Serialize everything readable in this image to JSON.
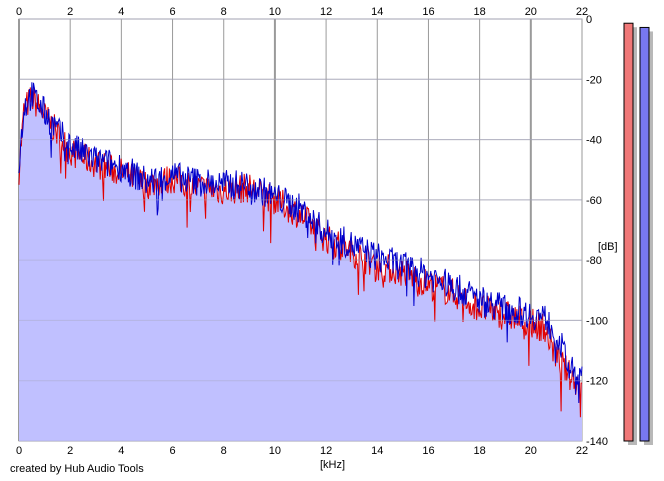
{
  "chart_data": {
    "type": "area",
    "xlabel": "[kHz]",
    "ylabel": "[dB]",
    "xlim": [
      0,
      22
    ],
    "ylim": [
      -140,
      0
    ],
    "x_ticks": [
      "0",
      "2",
      "4",
      "6",
      "8",
      "10",
      "12",
      "14",
      "16",
      "18",
      "20",
      "22"
    ],
    "y_ticks": [
      "0",
      "-20",
      "-40",
      "-60",
      "-80",
      "-100",
      "-120",
      "-140"
    ],
    "grid": true,
    "series": [
      {
        "color": "#e00000",
        "x": [
          0,
          0.2,
          0.5,
          1,
          1.5,
          2,
          3,
          4,
          5,
          6,
          7,
          8,
          9,
          10,
          11,
          12,
          13,
          14,
          15,
          16,
          17,
          18,
          19,
          20,
          20.5,
          21,
          21.5,
          22
        ],
        "values": [
          -50,
          -30,
          -26,
          -32,
          -38,
          -44,
          -48,
          -51,
          -55,
          -53,
          -56,
          -57,
          -56,
          -60,
          -65,
          -73,
          -77,
          -82,
          -84,
          -88,
          -91,
          -96,
          -98,
          -101,
          -102,
          -112,
          -118,
          -122
        ]
      },
      {
        "color": "#0000cc",
        "x": [
          0,
          0.2,
          0.5,
          1,
          1.5,
          2,
          3,
          4,
          5,
          6,
          7,
          8,
          9,
          10,
          11,
          12,
          13,
          14,
          15,
          16,
          17,
          18,
          19,
          20,
          20.5,
          21,
          21.5,
          22
        ],
        "values": [
          -48,
          -29,
          -25,
          -31,
          -37,
          -42,
          -47,
          -49,
          -54,
          -52,
          -54,
          -55,
          -55,
          -59,
          -63,
          -71,
          -75,
          -79,
          -82,
          -85,
          -89,
          -93,
          -96,
          -98,
          -99,
          -104,
          -116,
          -120
        ]
      }
    ],
    "level_meters": [
      {
        "color": "#f07878",
        "level": 0.99
      },
      {
        "color": "#7878f0",
        "level": 0.98
      }
    ]
  },
  "credit": "created by Hub Audio Tools"
}
